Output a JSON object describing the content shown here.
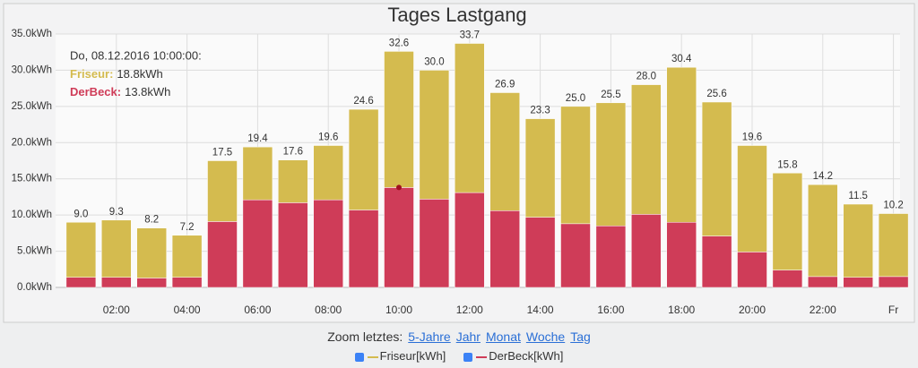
{
  "chart_data": {
    "type": "stacked-bar",
    "title": "Tages Lastgang",
    "categories": [
      null,
      "02:00",
      null,
      "04:00",
      null,
      "06:00",
      null,
      "08:00",
      null,
      "10:00",
      null,
      "12:00",
      null,
      "14:00",
      null,
      "16:00",
      null,
      "18:00",
      null,
      "20:00",
      null,
      "22:00",
      null,
      "Fr"
    ],
    "series": [
      {
        "name": "DerBeck[kWh]",
        "color": "#cf3c58",
        "values": [
          1.4,
          1.4,
          1.3,
          1.4,
          9.1,
          12.1,
          11.7,
          12.1,
          10.7,
          13.8,
          12.2,
          13.1,
          10.6,
          9.7,
          8.8,
          8.5,
          10.1,
          9.0,
          7.1,
          4.9,
          2.4,
          1.5,
          1.4,
          1.5
        ]
      },
      {
        "name": "Friseur[kWh]",
        "color": "#d4bb4f",
        "values": [
          7.6,
          7.9,
          6.9,
          5.8,
          8.4,
          7.3,
          5.9,
          7.5,
          13.9,
          18.8,
          17.8,
          20.6,
          16.3,
          13.6,
          16.2,
          17.0,
          17.9,
          21.4,
          18.5,
          14.7,
          13.4,
          12.7,
          10.1,
          8.7
        ]
      }
    ],
    "total_labels": [
      "9.0",
      "9.3",
      "8.2",
      "7.2",
      "17.5",
      "19.4",
      "17.6",
      "19.6",
      "24.6",
      "32.6",
      "30.0",
      "33.7",
      "26.9",
      "23.3",
      "25.0",
      "25.5",
      "28.0",
      "30.4",
      "25.6",
      "19.6",
      "15.8",
      "14.2",
      "11.5",
      "10.2"
    ],
    "ylim": [
      0,
      35
    ],
    "yticks": [
      {
        "value": 0,
        "label": "0.0kWh"
      },
      {
        "value": 5,
        "label": "5.0kWh"
      },
      {
        "value": 10,
        "label": "10.0kWh"
      },
      {
        "value": 15,
        "label": "15.0kWh"
      },
      {
        "value": 20,
        "label": "20.0kWh"
      },
      {
        "value": 25,
        "label": "25.0kWh"
      },
      {
        "value": 30,
        "label": "30.0kWh"
      },
      {
        "value": 35,
        "label": "35.0kWh"
      }
    ],
    "grid": true,
    "tooltip": {
      "header": "Do, 08.12.2016 10:00:00:",
      "items": [
        {
          "label": "Friseur:",
          "value": "18.8kWh"
        },
        {
          "label": "DerBeck:",
          "value": "13.8kWh"
        }
      ]
    },
    "zoom": {
      "label": "Zoom letztes:",
      "links": [
        "5-Jahre",
        "Jahr",
        "Monat",
        "Woche",
        "Tag"
      ]
    }
  }
}
